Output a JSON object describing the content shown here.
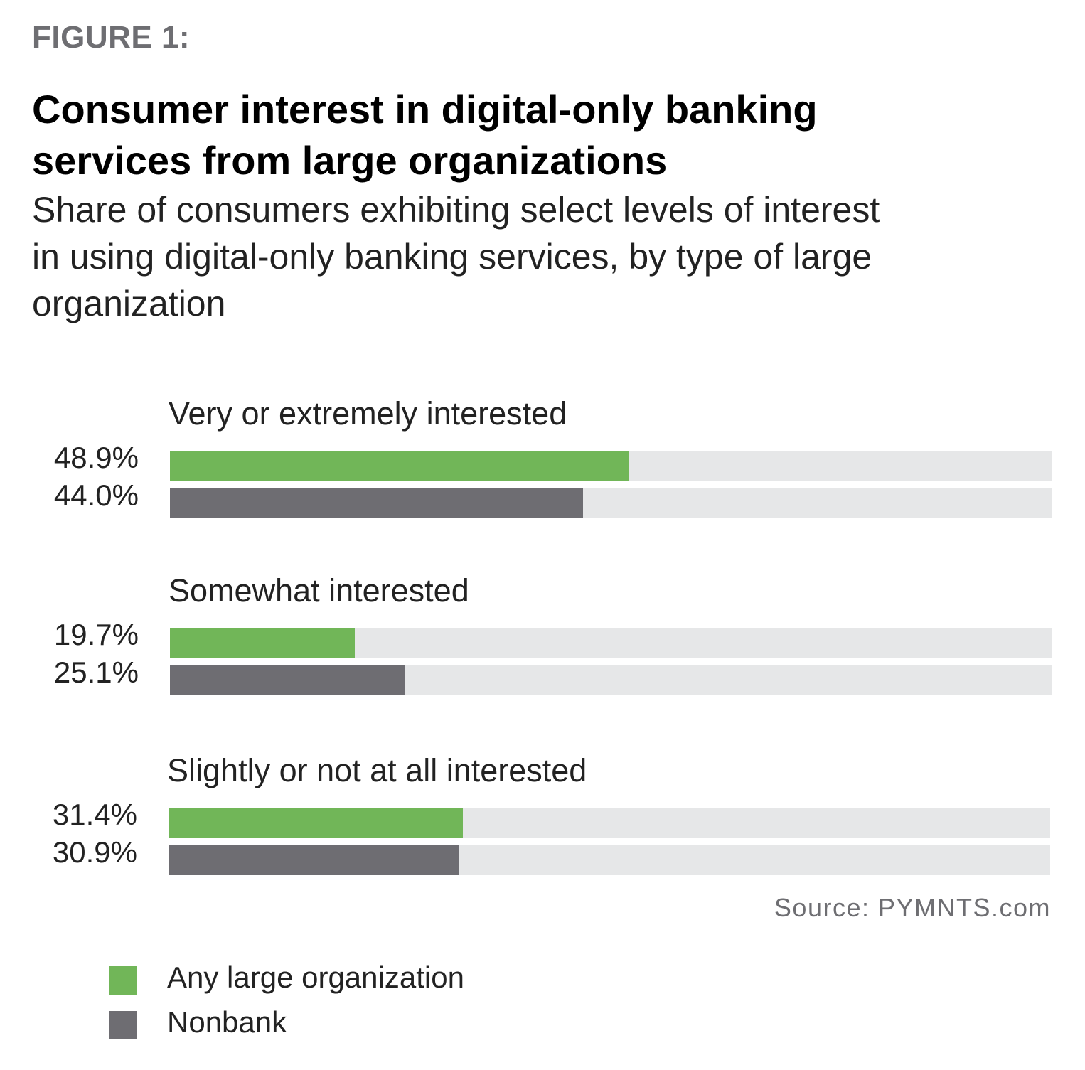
{
  "figure_label": "FIGURE 1:",
  "source": "Source: PYMNTS.com",
  "colors": {
    "any_large_org": "#71b658",
    "nonbank": "#6e6d72",
    "track": "#e6e7e8"
  },
  "chart_data": {
    "type": "bar",
    "orientation": "horizontal",
    "title": "Consumer interest in digital-only banking services from large organizations",
    "subtitle": "Share of consumers exhibiting select levels of interest in using digital-only banking services, by type of large organization",
    "categories": [
      "Very or extremely interested",
      "Somewhat interested",
      "Slightly or not at all interested"
    ],
    "series": [
      {
        "name": "Any large organization",
        "values": [
          48.9,
          19.7,
          31.4
        ],
        "labels": [
          "48.9%",
          "19.7%",
          "31.4%"
        ]
      },
      {
        "name": "Nonbank",
        "values": [
          44.0,
          25.1,
          30.9
        ],
        "labels": [
          "44.0%",
          "25.1%",
          "30.9%"
        ]
      }
    ],
    "xlim": [
      0,
      94
    ],
    "legend_position": "bottom-left",
    "grid": false
  }
}
